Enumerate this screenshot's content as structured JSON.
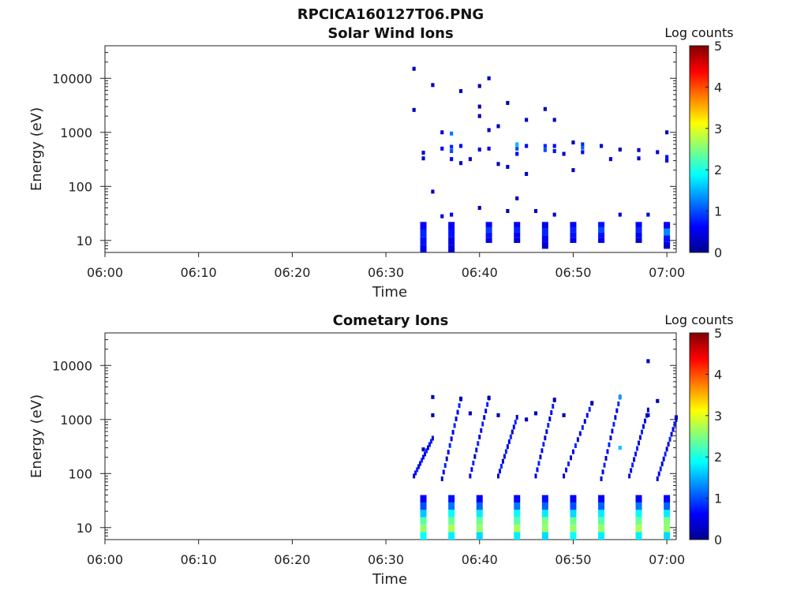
{
  "figure": {
    "title": "RPCICA160127T06.PNG"
  },
  "chart_data": [
    {
      "type": "heatmap",
      "title": "Solar Wind Ions",
      "xlabel": "Time",
      "ylabel": "Energy (eV)",
      "x_range": [
        "06:00",
        "07:01"
      ],
      "x_ticks": [
        "06:00",
        "06:10",
        "06:20",
        "06:30",
        "06:40",
        "06:50",
        "07:00"
      ],
      "ylim": [
        6,
        40000
      ],
      "y_scale": "log",
      "y_ticks": [
        {
          "value": 10,
          "label": "10"
        },
        {
          "value": 100,
          "label": "100"
        },
        {
          "value": 1000,
          "label": "1000"
        },
        {
          "value": 10000,
          "label": "10000"
        }
      ],
      "colorbar": {
        "label": "Log counts",
        "range": [
          0,
          5
        ],
        "ticks": [
          "0",
          "1",
          "2",
          "3",
          "4",
          "5"
        ],
        "colormap": "jet"
      },
      "data_start": "06:33",
      "cells": [
        [
          "06:33",
          15000,
          0.3
        ],
        [
          "06:33",
          2600,
          0.3
        ],
        [
          "06:34",
          420,
          0.4
        ],
        [
          "06:34",
          330,
          0.4
        ],
        [
          "06:35",
          7500,
          0.3
        ],
        [
          "06:35",
          80,
          0.3
        ],
        [
          "06:36",
          1000,
          0.3
        ],
        [
          "06:36",
          500,
          0.6
        ],
        [
          "06:37",
          540,
          0.8
        ],
        [
          "06:37",
          450,
          1.0
        ],
        [
          "06:37",
          320,
          0.5
        ],
        [
          "06:37",
          950,
          1.2
        ],
        [
          "06:38",
          560,
          0.6
        ],
        [
          "06:38",
          270,
          0.4
        ],
        [
          "06:38",
          5800,
          0.3
        ],
        [
          "06:39",
          320,
          0.4
        ],
        [
          "06:40",
          3000,
          0.3
        ],
        [
          "06:40",
          2000,
          0.3
        ],
        [
          "06:40",
          7200,
          0.3
        ],
        [
          "06:40",
          480,
          0.5
        ],
        [
          "06:41",
          10000,
          0.3
        ],
        [
          "06:41",
          1100,
          0.3
        ],
        [
          "06:41",
          500,
          0.5
        ],
        [
          "06:42",
          1300,
          0.3
        ],
        [
          "06:42",
          260,
          0.3
        ],
        [
          "06:43",
          3500,
          0.3
        ],
        [
          "06:43",
          230,
          0.3
        ],
        [
          "06:44",
          600,
          1.5
        ],
        [
          "06:44",
          500,
          1.0
        ],
        [
          "06:44",
          400,
          0.6
        ],
        [
          "06:45",
          1700,
          0.3
        ],
        [
          "06:45",
          560,
          0.6
        ],
        [
          "06:45",
          170,
          0.4
        ],
        [
          "06:47",
          560,
          0.8
        ],
        [
          "06:47",
          470,
          1.0
        ],
        [
          "06:47",
          2700,
          0.3
        ],
        [
          "06:48",
          1700,
          0.3
        ],
        [
          "06:48",
          560,
          0.6
        ],
        [
          "06:48",
          450,
          0.7
        ],
        [
          "06:49",
          400,
          0.4
        ],
        [
          "06:50",
          650,
          0.3
        ],
        [
          "06:50",
          200,
          0.3
        ],
        [
          "06:51",
          600,
          0.8
        ],
        [
          "06:51",
          520,
          1.1
        ],
        [
          "06:51",
          430,
          0.6
        ],
        [
          "06:53",
          560,
          0.4
        ],
        [
          "06:54",
          320,
          0.4
        ],
        [
          "06:55",
          480,
          0.3
        ],
        [
          "06:57",
          470,
          0.4
        ],
        [
          "06:57",
          330,
          0.4
        ],
        [
          "06:59",
          430,
          0.4
        ],
        [
          "07:00",
          350,
          0.7
        ],
        [
          "07:00",
          300,
          0.5
        ],
        [
          "07:00",
          1000,
          0.3
        ],
        [
          "06:36",
          28,
          0.4
        ],
        [
          "06:37",
          30,
          0.6
        ],
        [
          "06:40",
          40,
          0.3
        ],
        [
          "06:43",
          35,
          0.3
        ],
        [
          "06:44",
          60,
          0.3
        ],
        [
          "06:46",
          35,
          0.3
        ],
        [
          "06:48",
          30,
          0.4
        ],
        [
          "06:55",
          30,
          0.4
        ],
        [
          "06:58",
          30,
          0.4
        ]
      ],
      "bursts": [
        {
          "t": "06:34",
          "e_high": 22,
          "e_low": 6,
          "levels": [
            0.6,
            0.8,
            0.7,
            0.5
          ]
        },
        {
          "t": "06:37",
          "e_high": 22,
          "e_low": 6,
          "levels": [
            0.6,
            0.7,
            0.5,
            0.4
          ]
        },
        {
          "t": "06:41",
          "e_high": 22,
          "e_low": 9,
          "levels": [
            0.6,
            0.9,
            0.7,
            0.5
          ]
        },
        {
          "t": "06:44",
          "e_high": 22,
          "e_low": 9,
          "levels": [
            0.6,
            0.8,
            0.6,
            0.4
          ]
        },
        {
          "t": "06:47",
          "e_high": 22,
          "e_low": 7,
          "levels": [
            0.5,
            0.8,
            0.6,
            0.4
          ]
        },
        {
          "t": "06:50",
          "e_high": 22,
          "e_low": 9,
          "levels": [
            0.6,
            0.8,
            0.7,
            0.5
          ]
        },
        {
          "t": "06:53",
          "e_high": 22,
          "e_low": 9,
          "levels": [
            0.7,
            1.0,
            0.7,
            0.5
          ]
        },
        {
          "t": "06:57",
          "e_high": 22,
          "e_low": 9,
          "levels": [
            0.6,
            0.8,
            0.6,
            0.4
          ]
        },
        {
          "t": "07:00",
          "e_high": 22,
          "e_low": 7,
          "levels": [
            0.6,
            1.3,
            0.7,
            0.4
          ]
        }
      ]
    },
    {
      "type": "heatmap",
      "title": "Cometary Ions",
      "xlabel": "Time",
      "ylabel": "Energy (eV)",
      "x_range": [
        "06:00",
        "07:01"
      ],
      "x_ticks": [
        "06:00",
        "06:10",
        "06:20",
        "06:30",
        "06:40",
        "06:50",
        "07:00"
      ],
      "ylim": [
        6,
        40000
      ],
      "y_scale": "log",
      "y_ticks": [
        {
          "value": 10,
          "label": "10"
        },
        {
          "value": 100,
          "label": "100"
        },
        {
          "value": 1000,
          "label": "1000"
        },
        {
          "value": 10000,
          "label": "10000"
        }
      ],
      "colorbar": {
        "label": "Log counts",
        "range": [
          0,
          5
        ],
        "ticks": [
          "0",
          "1",
          "2",
          "3",
          "4",
          "5"
        ],
        "colormap": "jet"
      },
      "data_start": "06:33",
      "cells": [
        [
          "06:58",
          12000,
          0.3
        ],
        [
          "06:55",
          2600,
          1.4
        ],
        [
          "06:35",
          2600,
          0.3
        ],
        [
          "06:38",
          2400,
          0.3
        ],
        [
          "06:41",
          2500,
          0.3
        ],
        [
          "06:48",
          2300,
          0.3
        ],
        [
          "06:52",
          2000,
          0.3
        ],
        [
          "06:59",
          2200,
          0.3
        ],
        [
          "06:49",
          1200,
          0.3
        ],
        [
          "06:45",
          1000,
          0.3
        ],
        [
          "06:42",
          1200,
          0.3
        ],
        [
          "06:35",
          1200,
          0.3
        ],
        [
          "06:39",
          1300,
          0.4
        ],
        [
          "06:46",
          1300,
          0.3
        ],
        [
          "06:58",
          1200,
          0.3
        ],
        [
          "07:01",
          1100,
          0.3
        ],
        [
          "06:55",
          300,
          1.6
        ],
        [
          "06:34",
          280,
          0.3
        ]
      ],
      "bursts": [
        {
          "t": "06:34",
          "e_high": 40,
          "e_low": 6,
          "levels": [
            0.6,
            1.0,
            1.6,
            2.3,
            2.6,
            1.9
          ]
        },
        {
          "t": "06:37",
          "e_high": 40,
          "e_low": 6,
          "levels": [
            0.7,
            1.2,
            1.9,
            2.4,
            2.7,
            1.8
          ]
        },
        {
          "t": "06:40",
          "e_high": 40,
          "e_low": 6,
          "levels": [
            0.6,
            1.1,
            1.8,
            2.4,
            2.6,
            1.7
          ]
        },
        {
          "t": "06:44",
          "e_high": 40,
          "e_low": 6,
          "levels": [
            0.6,
            1.2,
            1.9,
            2.3,
            2.7,
            1.8
          ]
        },
        {
          "t": "06:47",
          "e_high": 40,
          "e_low": 6,
          "levels": [
            0.7,
            1.1,
            1.8,
            2.5,
            2.6,
            1.7
          ]
        },
        {
          "t": "06:50",
          "e_high": 40,
          "e_low": 6,
          "levels": [
            0.6,
            1.0,
            1.7,
            2.4,
            2.6,
            1.9
          ]
        },
        {
          "t": "06:53",
          "e_high": 40,
          "e_low": 6,
          "levels": [
            0.6,
            1.1,
            1.8,
            2.3,
            2.6,
            1.8
          ]
        },
        {
          "t": "06:57",
          "e_high": 40,
          "e_low": 6,
          "levels": [
            0.6,
            1.2,
            1.9,
            2.4,
            2.7,
            1.8
          ]
        },
        {
          "t": "07:00",
          "e_high": 40,
          "e_low": 6,
          "levels": [
            0.6,
            1.1,
            1.8,
            2.5,
            2.6,
            1.7
          ]
        }
      ],
      "dispersion": [
        {
          "t_start": "06:33",
          "t_end": "06:35",
          "e_start": 90,
          "e_end": 450
        },
        {
          "t_start": "06:36",
          "t_end": "06:38",
          "e_start": 80,
          "e_end": 2400
        },
        {
          "t_start": "06:39",
          "t_end": "06:41",
          "e_start": 90,
          "e_end": 2500
        },
        {
          "t_start": "06:42",
          "t_end": "06:44",
          "e_start": 90,
          "e_end": 1100
        },
        {
          "t_start": "06:46",
          "t_end": "06:48",
          "e_start": 90,
          "e_end": 2300
        },
        {
          "t_start": "06:49",
          "t_end": "06:52",
          "e_start": 90,
          "e_end": 2000
        },
        {
          "t_start": "06:53",
          "t_end": "06:55",
          "e_start": 80,
          "e_end": 2600
        },
        {
          "t_start": "06:56",
          "t_end": "06:58",
          "e_start": 90,
          "e_end": 1500
        },
        {
          "t_start": "06:59",
          "t_end": "07:01",
          "e_start": 80,
          "e_end": 1000
        }
      ]
    }
  ]
}
